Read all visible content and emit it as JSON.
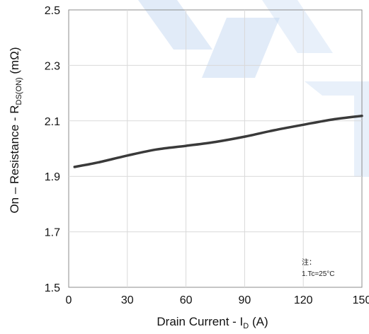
{
  "chart_data": {
    "type": "line",
    "title": "",
    "xlabel": "Drain Current - I",
    "xlabel_sub": "D",
    "xlabel_unit": " (A)",
    "ylabel": "On – Resistance - R",
    "ylabel_sub": "DS(ON)",
    "ylabel_unit": " (mΩ)",
    "xlim": [
      0,
      150
    ],
    "ylim": [
      1.5,
      2.5
    ],
    "xticks": [
      0,
      30,
      60,
      90,
      120,
      150
    ],
    "yticks": [
      "1.5",
      "1.7",
      "1.9",
      "2.1",
      "2.3",
      "2.5"
    ],
    "grid": true,
    "series": [
      {
        "x": [
          3,
          15,
          30,
          45,
          60,
          75,
          90,
          105,
          120,
          135,
          150
        ],
        "y": [
          1.934,
          1.95,
          1.975,
          1.997,
          2.01,
          2.024,
          2.043,
          2.066,
          2.086,
          2.105,
          2.118
        ],
        "color": "#3a3a3a"
      }
    ],
    "note": [
      "注：",
      "1.Tc=25°C"
    ]
  },
  "colors": {
    "line": "#3a3a3a",
    "grid": "#d9d9d9",
    "watermark": "#bcd3f0"
  }
}
